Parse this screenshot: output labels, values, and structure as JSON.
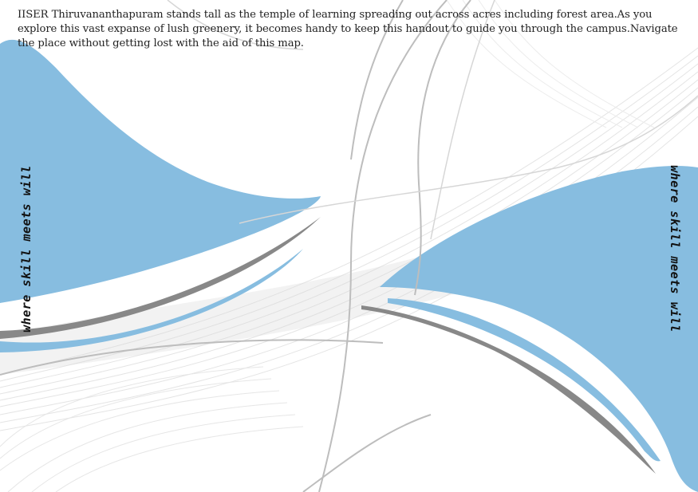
{
  "intro_text": "IISER Thiruvananthapuram stands tall as the temple of learning spreading out across acres including forest area.As you explore this vast expanse of lush greenery, it becomes handy to keep this handout to guide you through the campus.Navigate the place without getting lost with the aid of this map.",
  "tagline_left": "where skill meets will",
  "tagline_right": "where skill meets will",
  "colors": {
    "accent_blue": "#87bde0",
    "swoosh_gray": "#888888",
    "line_gray": "#c8c8c8",
    "text": "#222222"
  }
}
